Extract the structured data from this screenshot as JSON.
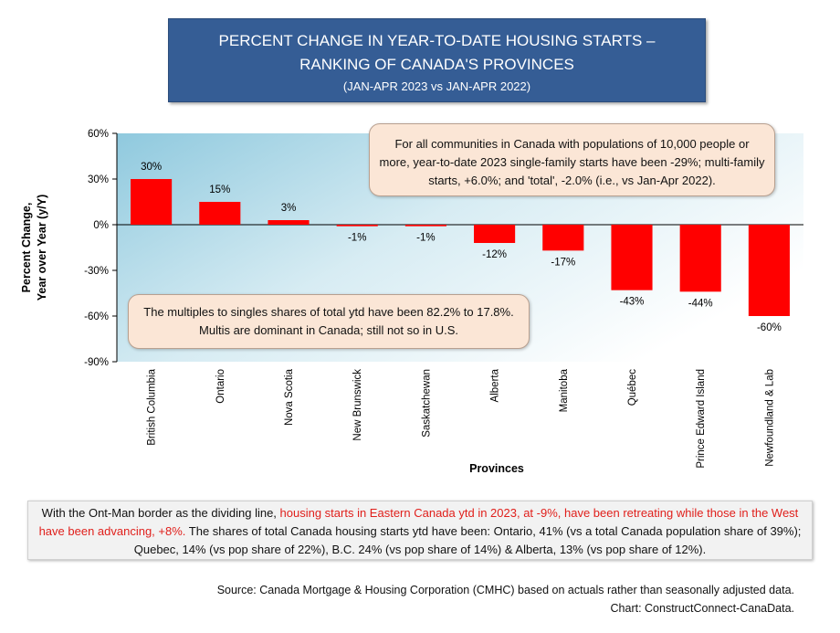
{
  "title": {
    "line1": "PERCENT CHANGE IN YEAR-TO-DATE HOUSING STARTS –",
    "line2": "RANKING OF CANADA'S PROVINCES",
    "line3": "(JAN-APR 2023 vs JAN-APR 2022)"
  },
  "chart_data": {
    "type": "bar",
    "categories": [
      "British Columbia",
      "Ontario",
      "Nova Scotia",
      "New Brunswick",
      "Saskatchewan",
      "Alberta",
      "Manitoba",
      "Québec",
      "Prince Edward Island",
      "Newfoundland & Lab"
    ],
    "values": [
      30,
      15,
      3,
      -1,
      -1,
      -12,
      -17,
      -43,
      -44,
      -60
    ],
    "value_labels": [
      "30%",
      "15%",
      "3%",
      "-1%",
      "-1%",
      "-12%",
      "-17%",
      "-43%",
      "-44%",
      "-60%"
    ],
    "ylim": [
      -90,
      60
    ],
    "yticks": [
      60,
      30,
      0,
      -30,
      -60,
      -90
    ],
    "ytick_labels": [
      "60%",
      "30%",
      "0%",
      "-30%",
      "-60%",
      "-90%"
    ],
    "xlabel": "Provinces",
    "ylabel_line1": "Percent Change,",
    "ylabel_line2": "Year over Year (y/Y)",
    "bar_color": "#ff0000"
  },
  "callouts": {
    "top": "For all communities in Canada with populations of 10,000 people or more, year-to-date 2023 single-family starts have been -29%; multi-family starts, +6.0%; and 'total', -2.0% (i.e., vs Jan-Apr 2022).",
    "middle": "The multiples to singles shares of total ytd have been 82.2% to 17.8%. Multis are dominant in Canada; still not so in U.S."
  },
  "summary": {
    "part1": "With the Ont-Man border as the dividing line, ",
    "highlight": "housing starts in Eastern Canada ytd in 2023, at -9%, have been retreating while those in the West have been advancing, +8%.",
    "part2": " The shares of total Canada housing starts ytd have been: Ontario, 41% (vs a total Canada population share of 39%); Quebec, 14% (vs pop share of 22%), B.C. 24% (vs pop share of 14%) & Alberta, 13% (vs pop share of 12%)."
  },
  "source": {
    "line1": "Source: Canada Mortgage & Housing Corporation (CMHC) based on actuals rather than seasonally adjusted data.",
    "line2": "Chart: ConstructConnect-CanaData."
  }
}
